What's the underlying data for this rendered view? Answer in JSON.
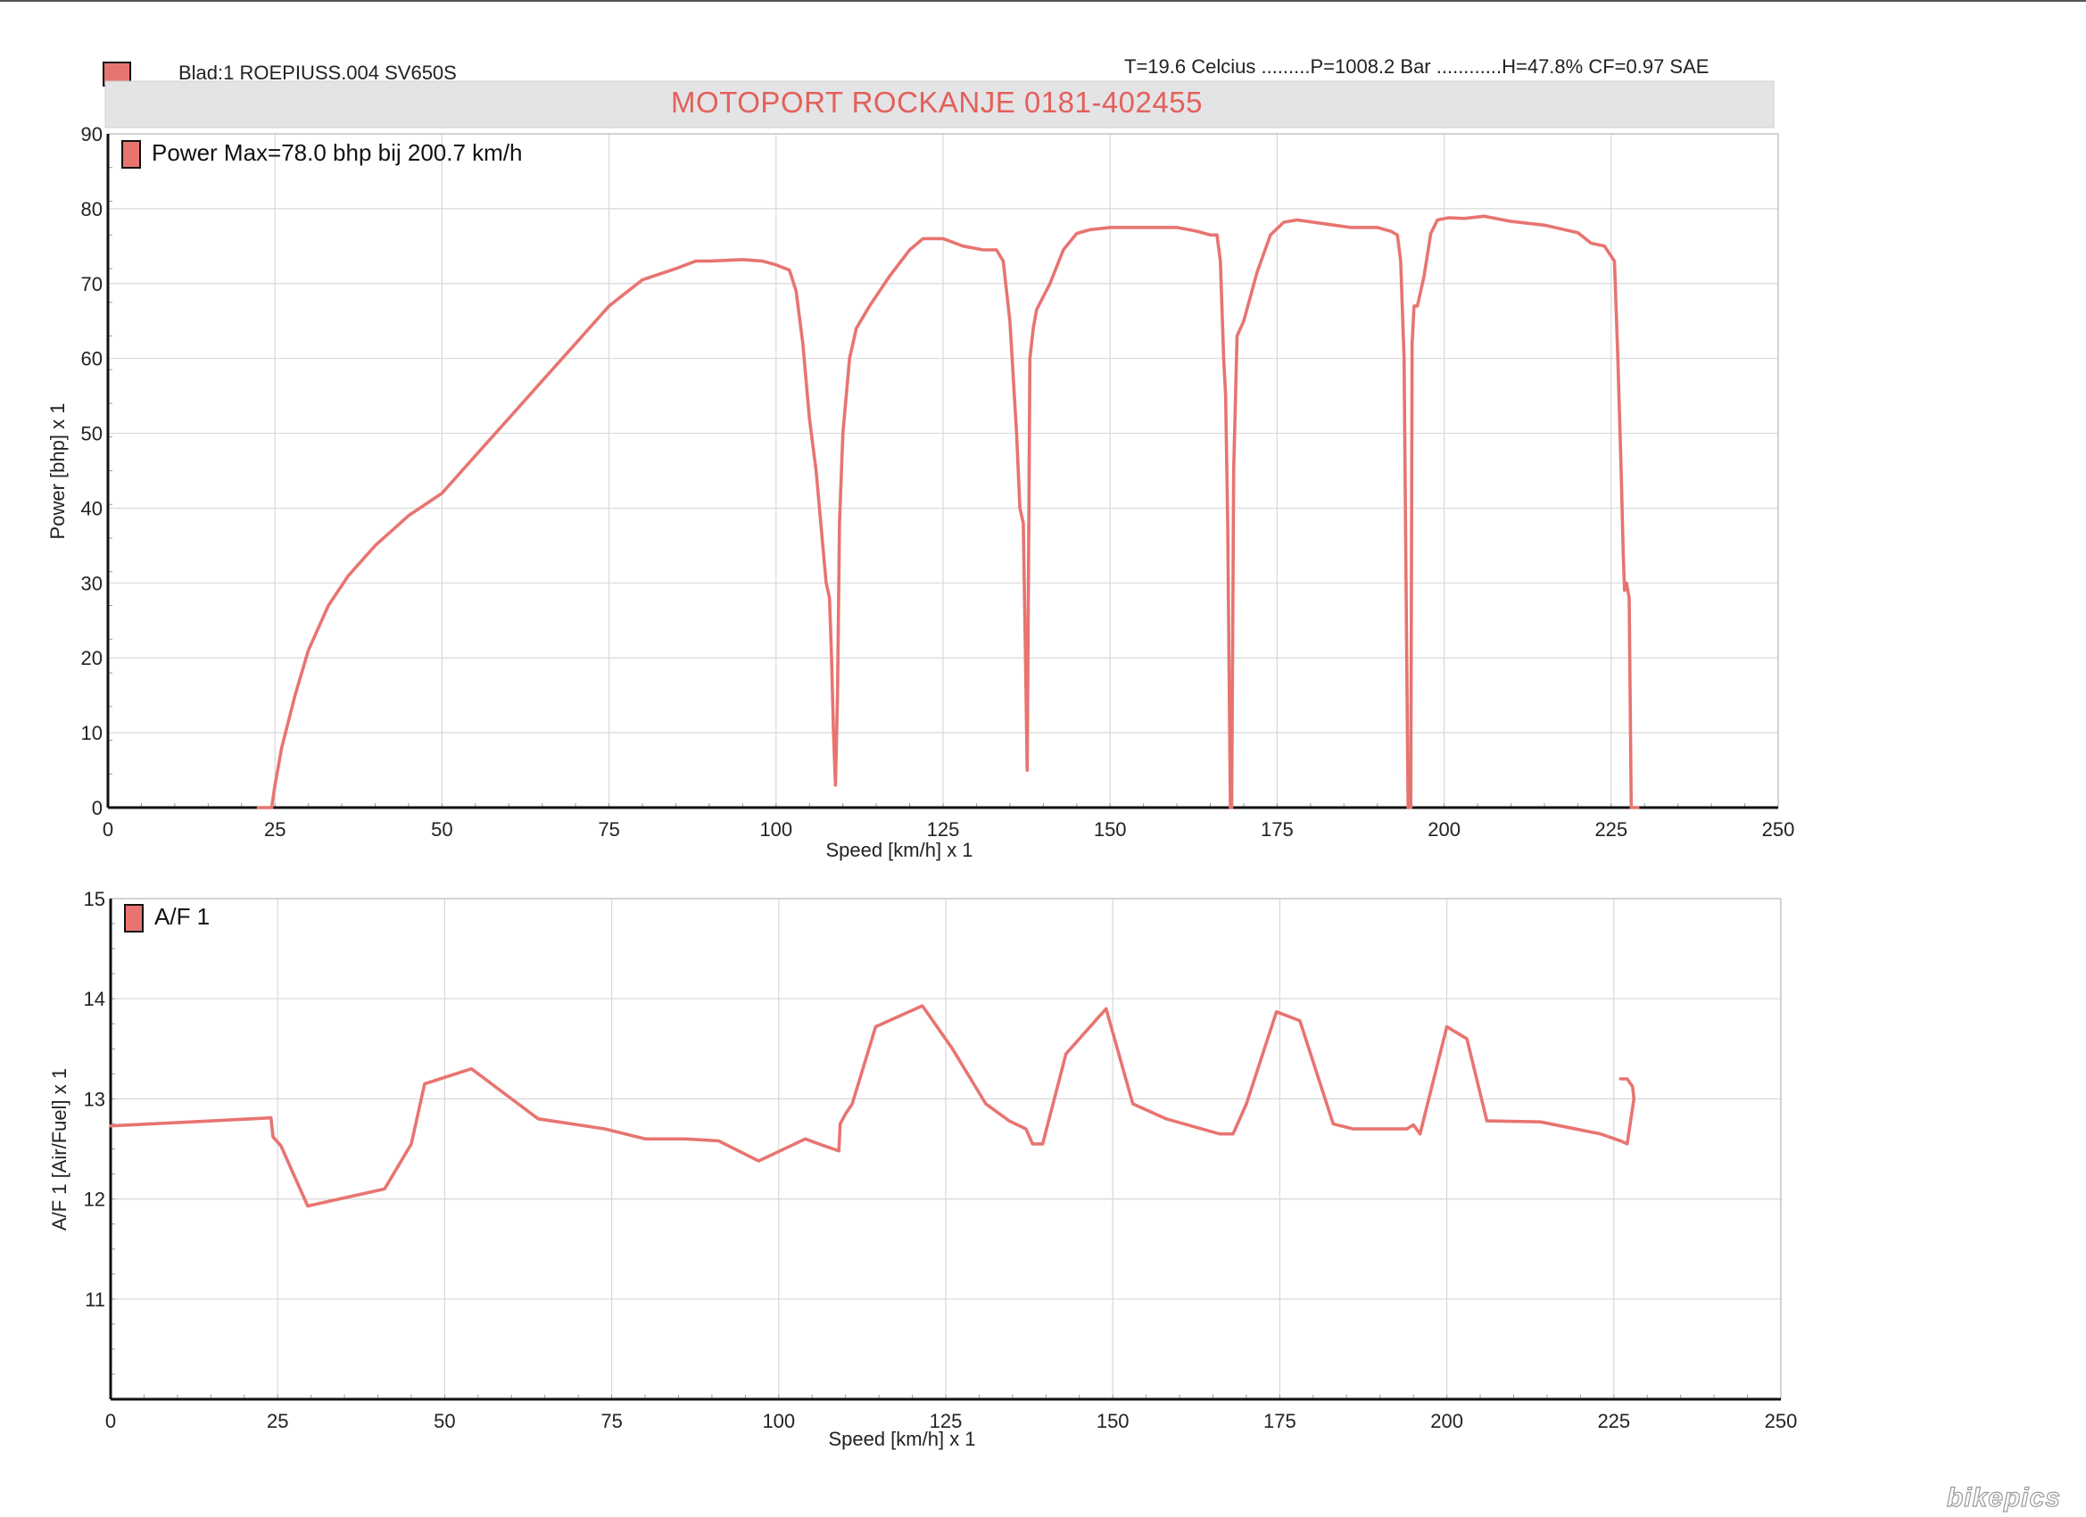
{
  "header": {
    "sheet_info": "Blad:1 ROEPIUSS.004 SV650S",
    "conditions": "T=19.6 Celcius .........P=1008.2 Bar ............H=47.8% CF=0.97 SAE",
    "banner": "MOTOPORT ROCKANJE 0181-402455",
    "colors": {
      "series": "#e87470",
      "banner_text": "#e3605a",
      "banner_bg": "#e4e4e6"
    }
  },
  "watermark": "bikepics",
  "chart_data": [
    {
      "type": "line",
      "legend": "Power  Max=78.0 bhp bij 200.7 km/h",
      "xlabel": "Speed [km/h] x 1",
      "ylabel": "Power [bhp] x 1",
      "xlim": [
        0,
        250
      ],
      "ylim": [
        0,
        90
      ],
      "xticks": [
        "0",
        "25",
        "50",
        "75",
        "100",
        "125",
        "150",
        "175",
        "200",
        "225",
        "250"
      ],
      "yticks": [
        "0",
        "10",
        "20",
        "30",
        "40",
        "50",
        "60",
        "70",
        "80",
        "90"
      ],
      "grid": true,
      "legend_position": "top-left",
      "series": [
        {
          "x": [
            22.5,
            24.5,
            25,
            26,
            28,
            30,
            33,
            36,
            40,
            45,
            50,
            55,
            60,
            65,
            70,
            75,
            80,
            85,
            88,
            90,
            95,
            98,
            100,
            102,
            103,
            104,
            105,
            106,
            107,
            107.5,
            108,
            108.3,
            108.6,
            108.9,
            109.2,
            109.5,
            110,
            111,
            112,
            114,
            117,
            120,
            122,
            125,
            128,
            131,
            133,
            134,
            135,
            136,
            136.5,
            137,
            137.3,
            137.6,
            138,
            138.5,
            139,
            141,
            143,
            145,
            147,
            150,
            155,
            160,
            163,
            165,
            166,
            166.5,
            167,
            167.3,
            167.6,
            168,
            168.2,
            168.5,
            169,
            170,
            172,
            174,
            176,
            178,
            182,
            186,
            190,
            192,
            193,
            193.5,
            194,
            194.3,
            194.6,
            195,
            195.2,
            195.5,
            196,
            197,
            198,
            199,
            200.7,
            203,
            206,
            210,
            215,
            220,
            222,
            224,
            225.5,
            226,
            226.5,
            226.8,
            227,
            227.3,
            227.7,
            228,
            228.3,
            228.6,
            229
          ],
          "y": [
            0,
            0,
            3,
            8,
            15,
            21,
            27,
            31,
            35,
            39,
            42,
            47,
            52,
            57,
            62,
            67,
            70.5,
            72,
            73,
            73,
            73.2,
            73,
            72.5,
            71.8,
            69,
            62,
            52,
            45,
            35,
            30,
            28,
            20,
            10,
            3,
            15,
            38,
            50,
            60,
            64,
            67,
            71,
            74.5,
            76,
            76,
            75,
            74.5,
            74.5,
            73,
            65,
            50,
            40,
            38,
            22,
            5,
            60,
            64,
            66.5,
            70,
            74.5,
            76.7,
            77.2,
            77.5,
            77.5,
            77.5,
            77,
            76.5,
            76.5,
            73,
            60,
            55,
            38,
            0,
            0,
            45,
            63,
            65,
            71.5,
            76.5,
            78.2,
            78.5,
            78,
            77.5,
            77.5,
            77,
            76.5,
            73,
            60,
            30,
            0,
            0,
            62,
            67,
            67,
            71,
            76.7,
            78.5,
            78.8,
            78.7,
            79,
            78.3,
            77.8,
            76.8,
            75.4,
            75,
            73,
            60,
            45,
            34,
            29,
            30,
            28,
            0,
            0,
            0,
            0
          ]
        }
      ]
    },
    {
      "type": "line",
      "legend": "A/F 1",
      "xlabel": "Speed [km/h] x 1",
      "ylabel": "A/F 1 [Air/Fuel] x 1",
      "xlim": [
        0,
        250
      ],
      "ylim": [
        10,
        15
      ],
      "xticks": [
        "0",
        "25",
        "50",
        "75",
        "100",
        "125",
        "150",
        "175",
        "200",
        "225",
        "250"
      ],
      "yticks": [
        "11",
        "12",
        "13",
        "14",
        "15"
      ],
      "grid": true,
      "legend_position": "top-left",
      "series": [
        {
          "x": [
            0,
            24,
            24.3,
            25.5,
            29.5,
            41,
            45,
            47,
            54,
            64,
            74,
            80,
            86,
            91,
            97,
            104,
            106,
            109,
            109.2,
            110,
            111,
            114.5,
            121.5,
            126,
            131,
            134.5,
            137,
            138,
            139.5,
            143,
            149,
            153,
            158,
            166,
            168,
            170,
            174.5,
            178,
            183,
            186,
            194,
            195,
            196,
            200,
            203,
            206,
            214,
            223,
            226,
            227,
            228,
            227.8,
            227,
            226
          ],
          "y": [
            12.73,
            12.81,
            12.62,
            12.53,
            11.93,
            12.1,
            12.55,
            13.15,
            13.3,
            12.8,
            12.7,
            12.6,
            12.6,
            12.58,
            12.38,
            12.6,
            12.55,
            12.48,
            12.75,
            12.85,
            12.95,
            13.72,
            13.93,
            13.5,
            12.95,
            12.78,
            12.7,
            12.55,
            12.55,
            13.45,
            13.9,
            12.95,
            12.8,
            12.65,
            12.65,
            12.95,
            13.87,
            13.78,
            12.75,
            12.7,
            12.7,
            12.74,
            12.65,
            13.72,
            13.6,
            12.78,
            12.77,
            12.65,
            12.58,
            12.55,
            13.0,
            13.12,
            13.2,
            13.2
          ]
        }
      ]
    }
  ]
}
